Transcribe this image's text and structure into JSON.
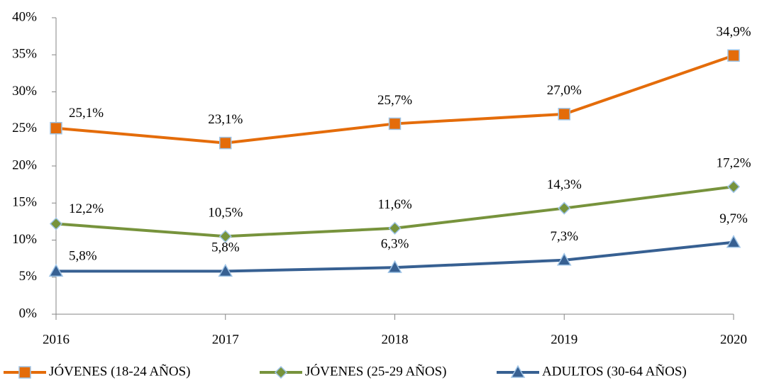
{
  "chart_data": {
    "type": "line",
    "categories": [
      "2016",
      "2017",
      "2018",
      "2019",
      "2020"
    ],
    "series": [
      {
        "name": "JÓVENES (18-24 AÑOS)",
        "color": "#e46c0a",
        "marker": "square",
        "values": [
          25.1,
          23.1,
          25.7,
          27.0,
          34.9
        ],
        "value_labels": [
          "25,1%",
          "23,1%",
          "25,7%",
          "27,0%",
          "34,9%"
        ]
      },
      {
        "name": "JÓVENES (25-29 AÑOS)",
        "color": "#77933c",
        "marker": "diamond",
        "values": [
          12.2,
          10.5,
          11.6,
          14.3,
          17.2
        ],
        "value_labels": [
          "12,2%",
          "10,5%",
          "11,6%",
          "14,3%",
          "17,2%"
        ]
      },
      {
        "name": "ADULTOS (30-64 AÑOS)",
        "color": "#376092",
        "marker": "triangle",
        "values": [
          5.8,
          5.8,
          6.3,
          7.3,
          9.7
        ],
        "value_labels": [
          "5,8%",
          "5,8%",
          "6,3%",
          "7,3%",
          "9,7%"
        ]
      }
    ],
    "ylim": [
      0,
      40
    ],
    "yticks": [
      {
        "value": 0,
        "label": "0%"
      },
      {
        "value": 5,
        "label": "5%"
      },
      {
        "value": 10,
        "label": "10%"
      },
      {
        "value": 15,
        "label": "15%"
      },
      {
        "value": 20,
        "label": "20%"
      },
      {
        "value": 25,
        "label": "25%"
      },
      {
        "value": 30,
        "label": "30%"
      },
      {
        "value": 35,
        "label": "35%"
      },
      {
        "value": 40,
        "label": "40%"
      }
    ],
    "grid": false,
    "legend": "bottom"
  }
}
